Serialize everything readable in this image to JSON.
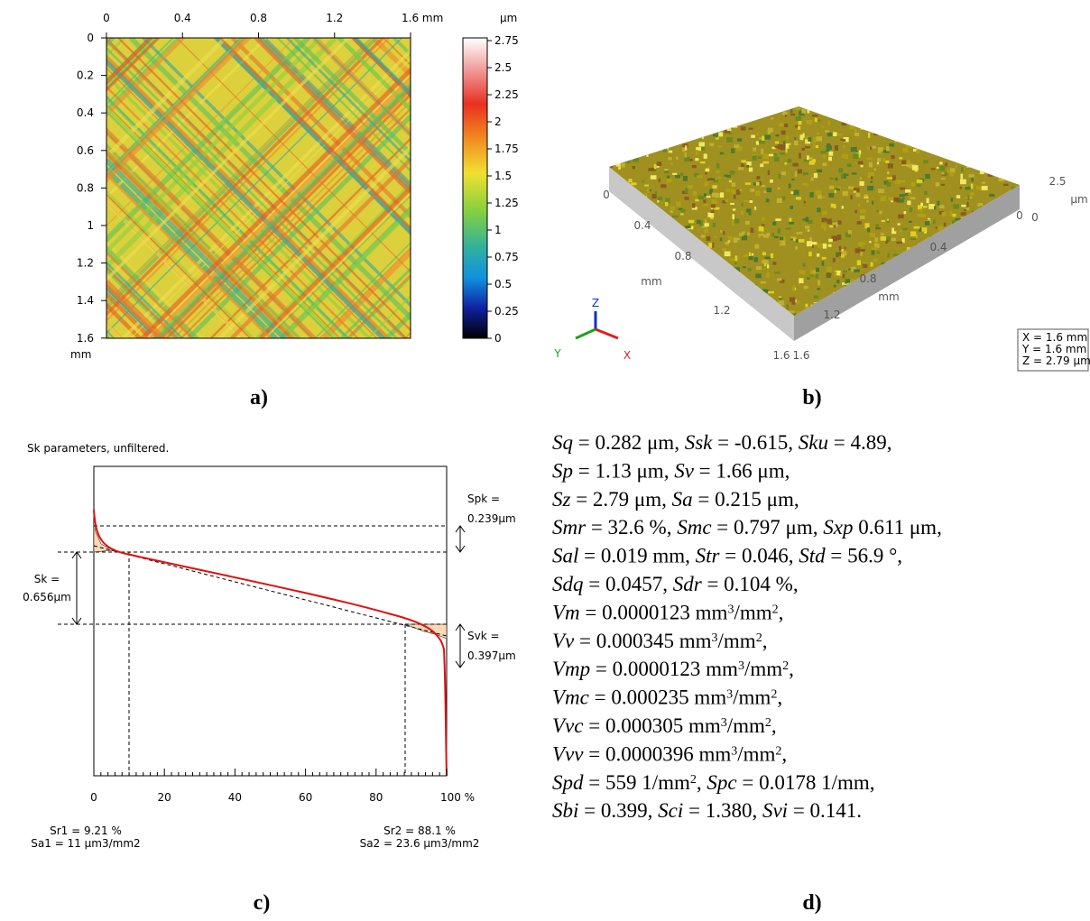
{
  "panel_a": {
    "x_labels": [
      "0",
      "0.4",
      "0.8",
      "1.2",
      "1.6 mm"
    ],
    "y_labels": [
      "0",
      "0.2",
      "0.4",
      "0.6",
      "0.8",
      "1",
      "1.2",
      "1.4",
      "1.6"
    ],
    "y_unit": "mm",
    "colorbar_unit": "µm",
    "colorbar_labels": [
      "2.75",
      "2.5",
      "2.25",
      "2",
      "1.75",
      "1.5",
      "1.25",
      "1",
      "0.75",
      "0.5",
      "0.25",
      "0"
    ],
    "caption": "a)"
  },
  "panel_b": {
    "axis_labels": [
      "0",
      "0.4",
      "0.8",
      "mm",
      "1.2",
      "1.6",
      "1.6",
      "1.2",
      "mm",
      "0.8",
      "0.4",
      "0",
      "0",
      "2.5",
      "µm"
    ],
    "triad": [
      "Z",
      "Y",
      "X"
    ],
    "info": [
      "X = 1.6 mm",
      "Y = 1.6 mm",
      "Z = 2.79 µm"
    ],
    "caption": "b)"
  },
  "panel_c": {
    "title": "Sk parameters, unfiltered.",
    "x_labels": [
      "0",
      "20",
      "40",
      "60",
      "80",
      "100 %"
    ],
    "spk": [
      "Spk =",
      "0.239µm"
    ],
    "sk": [
      "Sk =",
      "0.656µm"
    ],
    "svk": [
      "Svk =",
      "0.397µm"
    ],
    "bottom_left": [
      "Sr1 = 9.21 %",
      "Sa1 = 11 µm3/mm2"
    ],
    "bottom_right": [
      "Sr2 = 88.1 %",
      "Sa2 = 23.6 µm3/mm2"
    ],
    "caption": "c)"
  },
  "panel_d": {
    "lines": [
      [
        {
          "italic": "Sq"
        },
        {
          "text": " = 0.282 μm, "
        },
        {
          "italic": "Ssk"
        },
        {
          "text": " = -0.615, "
        },
        {
          "italic": "Sku"
        },
        {
          "text": " = 4.89,"
        }
      ],
      [
        {
          "italic": "Sp"
        },
        {
          "text": " = 1.13 μm, "
        },
        {
          "italic": "Sv"
        },
        {
          "text": " = 1.66 μm,"
        }
      ],
      [
        {
          "italic": "Sz"
        },
        {
          "text": " = 2.79 μm, "
        },
        {
          "italic": "Sa"
        },
        {
          "text": " = 0.215 μm,"
        }
      ],
      [
        {
          "italic": "Smr"
        },
        {
          "text": " = 32.6 %, "
        },
        {
          "italic": "Smc"
        },
        {
          "text": " = 0.797 μm, "
        },
        {
          "italic": "Sxp"
        },
        {
          "text": " 0.611 μm,"
        }
      ],
      [
        {
          "italic": "Sal"
        },
        {
          "text": " = 0.019 mm, "
        },
        {
          "italic": "Str"
        },
        {
          "text": " = 0.046, "
        },
        {
          "italic": "Std"
        },
        {
          "text": " = 56.9 °,"
        }
      ],
      [
        {
          "italic": "Sdq"
        },
        {
          "text": " = 0.0457, "
        },
        {
          "italic": "Sdr"
        },
        {
          "text": " = 0.104 %,"
        }
      ],
      [
        {
          "italic": "Vm"
        },
        {
          "text": " = 0.0000123 mm"
        },
        {
          "sup": "3"
        },
        {
          "text": "/mm"
        },
        {
          "sup": "2"
        },
        {
          "text": ","
        }
      ],
      [
        {
          "italic": "Vv"
        },
        {
          "text": " = 0.000345 mm"
        },
        {
          "sup": "3"
        },
        {
          "text": "/mm"
        },
        {
          "sup": "2"
        },
        {
          "text": ","
        }
      ],
      [
        {
          "italic": "Vmp"
        },
        {
          "text": " = 0.0000123 mm"
        },
        {
          "sup": "3"
        },
        {
          "text": "/mm"
        },
        {
          "sup": "2"
        },
        {
          "text": ","
        }
      ],
      [
        {
          "italic": "Vmc"
        },
        {
          "text": " = 0.000235 mm"
        },
        {
          "sup": "3"
        },
        {
          "text": "/mm"
        },
        {
          "sup": "2"
        },
        {
          "text": ","
        }
      ],
      [
        {
          "italic": "Vvc"
        },
        {
          "text": " = 0.000305 mm"
        },
        {
          "sup": "3"
        },
        {
          "text": "/mm"
        },
        {
          "sup": "2"
        },
        {
          "text": ","
        }
      ],
      [
        {
          "italic": "Vvv"
        },
        {
          "text": " = 0.0000396 mm"
        },
        {
          "sup": "3"
        },
        {
          "text": "/mm"
        },
        {
          "sup": "2"
        },
        {
          "text": ","
        }
      ],
      [
        {
          "italic": "Spd"
        },
        {
          "text": " = 559 1/mm"
        },
        {
          "sup": "2"
        },
        {
          "text": ", "
        },
        {
          "italic": "Spc"
        },
        {
          "text": " = 0.0178 1/mm,"
        }
      ],
      [
        {
          "italic": "Sbi"
        },
        {
          "text": " = 0.399, "
        },
        {
          "italic": "Sci"
        },
        {
          "text": " = 1.380, "
        },
        {
          "italic": "Svi"
        },
        {
          "text": " = 0.141."
        }
      ]
    ],
    "caption": "d)"
  }
}
